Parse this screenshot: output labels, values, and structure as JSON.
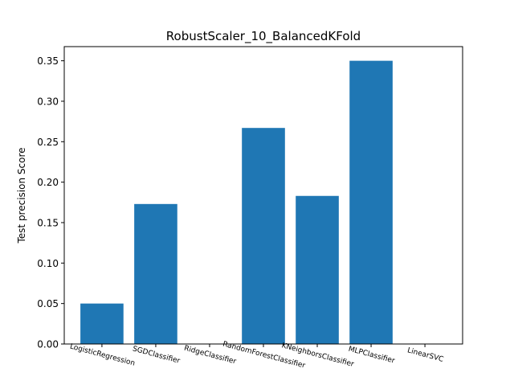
{
  "chart_data": {
    "type": "bar",
    "title": "RobustScaler_10_BalancedKFold",
    "xlabel": "",
    "ylabel": "Test precision Score",
    "categories": [
      "LogisticRegression",
      "SGDClassifier",
      "RidgeClassifier",
      "RandomForestClassifier",
      "KNeighborsClassifier",
      "MLPClassifier",
      "LinearSVC"
    ],
    "values": [
      0.05,
      0.173,
      0.0,
      0.267,
      0.183,
      0.35,
      0.0
    ],
    "ylim": [
      0,
      0.3675
    ],
    "yticks": [
      0.0,
      0.05,
      0.1,
      0.15,
      0.2,
      0.25,
      0.3,
      0.35
    ],
    "ytick_labels": [
      "0.00",
      "0.05",
      "0.10",
      "0.15",
      "0.20",
      "0.25",
      "0.30",
      "0.35"
    ],
    "grid": false,
    "bar_color": "#1f77b4"
  }
}
